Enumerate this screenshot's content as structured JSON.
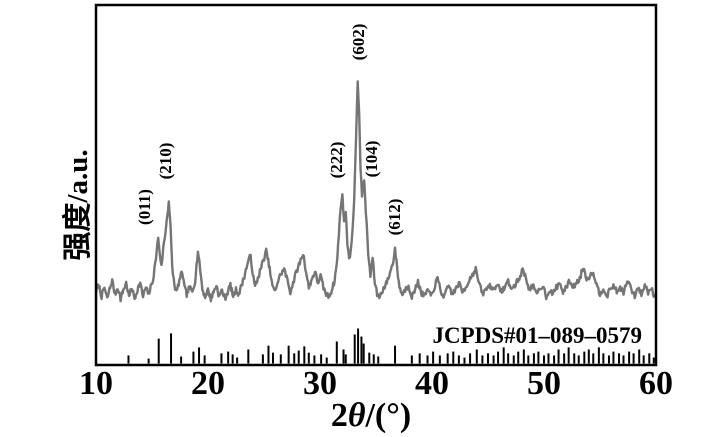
{
  "figure": {
    "background": "#ffffff",
    "trace_color": "#757575",
    "reference_color": "#000000",
    "axis_color": "#000000"
  },
  "chart_data": {
    "type": "line",
    "title": "",
    "xlabel": "2θ/(°)",
    "ylabel": "强度/a.u.",
    "xlim": [
      10,
      60
    ],
    "x_ticks": [
      "10",
      "20",
      "30",
      "40",
      "50",
      "60"
    ],
    "y_ticks": [],
    "ylim": [
      0,
      105
    ],
    "grid": false,
    "legend": "none",
    "annotation": "JCPDS#01–089–0579",
    "noise_amplitude": 1.2,
    "peak_labels": [
      {
        "label": "(011)",
        "two_theta": 15.55,
        "intensity": 31
      },
      {
        "label": "(210)",
        "two_theta": 16.5,
        "intensity": 47
      },
      {
        "label": "(222)",
        "two_theta": 32.0,
        "intensity": 51
      },
      {
        "label": "(602)",
        "two_theta": 33.37,
        "intensity": 99
      },
      {
        "label": "(104)",
        "two_theta": 33.95,
        "intensity": 56
      },
      {
        "label": "(612)",
        "two_theta": 36.7,
        "intensity": 26
      }
    ],
    "series": [
      {
        "name": "measured XRD pattern (intensity, a.u.)",
        "points": [
          [
            10.0,
            7
          ],
          [
            10.25,
            10
          ],
          [
            10.5,
            5
          ],
          [
            10.75,
            9
          ],
          [
            11.0,
            4
          ],
          [
            11.2,
            8
          ],
          [
            11.45,
            12
          ],
          [
            11.7,
            6
          ],
          [
            11.95,
            9
          ],
          [
            12.2,
            4
          ],
          [
            12.45,
            8
          ],
          [
            12.7,
            11
          ],
          [
            12.95,
            5
          ],
          [
            13.2,
            9
          ],
          [
            13.45,
            4
          ],
          [
            13.7,
            8
          ],
          [
            13.95,
            11
          ],
          [
            14.2,
            5
          ],
          [
            14.45,
            9
          ],
          [
            14.7,
            6
          ],
          [
            14.95,
            10
          ],
          [
            15.15,
            14
          ],
          [
            15.35,
            22
          ],
          [
            15.55,
            31
          ],
          [
            15.7,
            24
          ],
          [
            15.85,
            18
          ],
          [
            16.0,
            26
          ],
          [
            16.15,
            31
          ],
          [
            16.3,
            38
          ],
          [
            16.5,
            47
          ],
          [
            16.65,
            36
          ],
          [
            16.8,
            18
          ],
          [
            17.0,
            10
          ],
          [
            17.2,
            7
          ],
          [
            17.45,
            12
          ],
          [
            17.7,
            16
          ],
          [
            17.9,
            9
          ],
          [
            18.1,
            6
          ],
          [
            18.35,
            9
          ],
          [
            18.6,
            7
          ],
          [
            18.85,
            12
          ],
          [
            19.1,
            25
          ],
          [
            19.3,
            17
          ],
          [
            19.5,
            8
          ],
          [
            19.75,
            5
          ],
          [
            20.0,
            8
          ],
          [
            20.25,
            4
          ],
          [
            20.5,
            7
          ],
          [
            20.75,
            10
          ],
          [
            21.0,
            5
          ],
          [
            21.25,
            8
          ],
          [
            21.5,
            4
          ],
          [
            21.75,
            7
          ],
          [
            22.0,
            10
          ],
          [
            22.25,
            5
          ],
          [
            22.5,
            8
          ],
          [
            22.75,
            6
          ],
          [
            23.0,
            10
          ],
          [
            23.25,
            14
          ],
          [
            23.5,
            19
          ],
          [
            23.8,
            23
          ],
          [
            24.0,
            15
          ],
          [
            24.2,
            9
          ],
          [
            24.45,
            13
          ],
          [
            24.7,
            17
          ],
          [
            24.95,
            21
          ],
          [
            25.2,
            25
          ],
          [
            25.45,
            19
          ],
          [
            25.7,
            11
          ],
          [
            25.95,
            7
          ],
          [
            26.2,
            11
          ],
          [
            26.5,
            15
          ],
          [
            26.8,
            17
          ],
          [
            27.1,
            12
          ],
          [
            27.35,
            7
          ],
          [
            27.6,
            11
          ],
          [
            27.9,
            16
          ],
          [
            28.2,
            20
          ],
          [
            28.5,
            24
          ],
          [
            28.75,
            16
          ],
          [
            29.0,
            9
          ],
          [
            29.3,
            13
          ],
          [
            29.55,
            16
          ],
          [
            29.8,
            11
          ],
          [
            30.05,
            14
          ],
          [
            30.3,
            9
          ],
          [
            30.55,
            6
          ],
          [
            30.8,
            5
          ],
          [
            31.05,
            8
          ],
          [
            31.3,
            12
          ],
          [
            31.55,
            22
          ],
          [
            31.75,
            38
          ],
          [
            31.9,
            46
          ],
          [
            32.0,
            51
          ],
          [
            32.15,
            37
          ],
          [
            32.3,
            43
          ],
          [
            32.45,
            28
          ],
          [
            32.6,
            21
          ],
          [
            32.75,
            26
          ],
          [
            32.9,
            33
          ],
          [
            33.05,
            48
          ],
          [
            33.2,
            72
          ],
          [
            33.37,
            99
          ],
          [
            33.5,
            84
          ],
          [
            33.62,
            62
          ],
          [
            33.75,
            50
          ],
          [
            33.95,
            56
          ],
          [
            34.1,
            42
          ],
          [
            34.3,
            24
          ],
          [
            34.5,
            14
          ],
          [
            34.7,
            22
          ],
          [
            34.9,
            11
          ],
          [
            35.1,
            6
          ],
          [
            35.35,
            5
          ],
          [
            35.6,
            8
          ],
          [
            35.85,
            10
          ],
          [
            36.1,
            13
          ],
          [
            36.35,
            17
          ],
          [
            36.55,
            21
          ],
          [
            36.7,
            26
          ],
          [
            36.9,
            17
          ],
          [
            37.1,
            9
          ],
          [
            37.35,
            6
          ],
          [
            37.6,
            8
          ],
          [
            37.9,
            10
          ],
          [
            38.2,
            5
          ],
          [
            38.5,
            8
          ],
          [
            38.75,
            12
          ],
          [
            39.0,
            7
          ],
          [
            39.3,
            5
          ],
          [
            39.6,
            8
          ],
          [
            39.9,
            5
          ],
          [
            40.2,
            9
          ],
          [
            40.5,
            13
          ],
          [
            40.8,
            7
          ],
          [
            41.1,
            5
          ],
          [
            41.5,
            10
          ],
          [
            41.8,
            6
          ],
          [
            42.1,
            8
          ],
          [
            42.4,
            11
          ],
          [
            42.7,
            7
          ],
          [
            43.0,
            9
          ],
          [
            43.4,
            13
          ],
          [
            43.9,
            17
          ],
          [
            44.2,
            11
          ],
          [
            44.5,
            6
          ],
          [
            44.8,
            8
          ],
          [
            45.1,
            10
          ],
          [
            45.5,
            8
          ],
          [
            45.8,
            11
          ],
          [
            46.1,
            7
          ],
          [
            46.5,
            9
          ],
          [
            46.8,
            12
          ],
          [
            47.1,
            8
          ],
          [
            47.4,
            10
          ],
          [
            47.8,
            13
          ],
          [
            48.1,
            17
          ],
          [
            48.4,
            13
          ],
          [
            48.7,
            8
          ],
          [
            49.0,
            10
          ],
          [
            49.3,
            6
          ],
          [
            49.6,
            8
          ],
          [
            49.9,
            10
          ],
          [
            50.2,
            5
          ],
          [
            50.5,
            8
          ],
          [
            50.8,
            6
          ],
          [
            51.1,
            9
          ],
          [
            51.4,
            11
          ],
          [
            51.7,
            7
          ],
          [
            52.0,
            9
          ],
          [
            52.3,
            12
          ],
          [
            52.6,
            9
          ],
          [
            52.9,
            11
          ],
          [
            53.2,
            13
          ],
          [
            53.5,
            18
          ],
          [
            53.8,
            13
          ],
          [
            54.1,
            14
          ],
          [
            54.4,
            16
          ],
          [
            54.7,
            10
          ],
          [
            55.0,
            6
          ],
          [
            55.3,
            9
          ],
          [
            55.6,
            5
          ],
          [
            55.9,
            8
          ],
          [
            56.2,
            10
          ],
          [
            56.5,
            7
          ],
          [
            56.8,
            9
          ],
          [
            57.1,
            7
          ],
          [
            57.5,
            12
          ],
          [
            57.8,
            8
          ],
          [
            58.1,
            5
          ],
          [
            58.4,
            9
          ],
          [
            58.7,
            6
          ],
          [
            59.0,
            10
          ],
          [
            59.3,
            7
          ],
          [
            59.6,
            9
          ],
          [
            59.85,
            5
          ],
          [
            60.0,
            7
          ]
        ]
      },
      {
        "name": "JCPDS#01–089–0579 reference stick pattern (relative height 0–1)",
        "sticks": [
          [
            12.9,
            0.23
          ],
          [
            14.7,
            0.14
          ],
          [
            15.6,
            0.71
          ],
          [
            16.7,
            0.86
          ],
          [
            17.6,
            0.2
          ],
          [
            18.7,
            0.34
          ],
          [
            19.2,
            0.46
          ],
          [
            19.7,
            0.23
          ],
          [
            21.2,
            0.29
          ],
          [
            21.8,
            0.34
          ],
          [
            22.2,
            0.26
          ],
          [
            22.6,
            0.17
          ],
          [
            23.6,
            0.4
          ],
          [
            24.9,
            0.26
          ],
          [
            25.4,
            0.51
          ],
          [
            25.8,
            0.31
          ],
          [
            26.5,
            0.26
          ],
          [
            27.2,
            0.51
          ],
          [
            27.7,
            0.29
          ],
          [
            28.1,
            0.37
          ],
          [
            28.6,
            0.49
          ],
          [
            29.0,
            0.31
          ],
          [
            29.5,
            0.23
          ],
          [
            30.1,
            0.26
          ],
          [
            30.6,
            0.17
          ],
          [
            31.5,
            0.63
          ],
          [
            32.1,
            0.4
          ],
          [
            32.3,
            0.26
          ],
          [
            33.1,
            0.83
          ],
          [
            33.4,
            1.0
          ],
          [
            33.7,
            0.77
          ],
          [
            33.9,
            0.57
          ],
          [
            34.4,
            0.31
          ],
          [
            34.8,
            0.26
          ],
          [
            35.2,
            0.2
          ],
          [
            36.7,
            0.51
          ],
          [
            38.2,
            0.23
          ],
          [
            38.9,
            0.29
          ],
          [
            39.6,
            0.23
          ],
          [
            40.1,
            0.34
          ],
          [
            40.7,
            0.23
          ],
          [
            41.4,
            0.29
          ],
          [
            41.9,
            0.34
          ],
          [
            42.4,
            0.23
          ],
          [
            42.9,
            0.17
          ],
          [
            43.4,
            0.29
          ],
          [
            44.0,
            0.4
          ],
          [
            44.5,
            0.23
          ],
          [
            45.0,
            0.29
          ],
          [
            45.5,
            0.23
          ],
          [
            45.9,
            0.34
          ],
          [
            46.4,
            0.46
          ],
          [
            46.8,
            0.29
          ],
          [
            47.3,
            0.23
          ],
          [
            47.7,
            0.34
          ],
          [
            48.2,
            0.4
          ],
          [
            48.6,
            0.23
          ],
          [
            49.1,
            0.29
          ],
          [
            49.5,
            0.34
          ],
          [
            50.0,
            0.23
          ],
          [
            50.4,
            0.29
          ],
          [
            50.9,
            0.23
          ],
          [
            51.3,
            0.4
          ],
          [
            51.8,
            0.29
          ],
          [
            52.2,
            0.46
          ],
          [
            52.7,
            0.29
          ],
          [
            53.1,
            0.23
          ],
          [
            53.6,
            0.34
          ],
          [
            54.0,
            0.4
          ],
          [
            54.4,
            0.29
          ],
          [
            54.9,
            0.46
          ],
          [
            55.3,
            0.29
          ],
          [
            55.8,
            0.23
          ],
          [
            56.2,
            0.34
          ],
          [
            56.7,
            0.29
          ],
          [
            57.1,
            0.23
          ],
          [
            57.6,
            0.34
          ],
          [
            58.0,
            0.29
          ],
          [
            58.5,
            0.4
          ],
          [
            58.9,
            0.23
          ],
          [
            59.4,
            0.29
          ],
          [
            59.8,
            0.17
          ]
        ]
      }
    ]
  }
}
